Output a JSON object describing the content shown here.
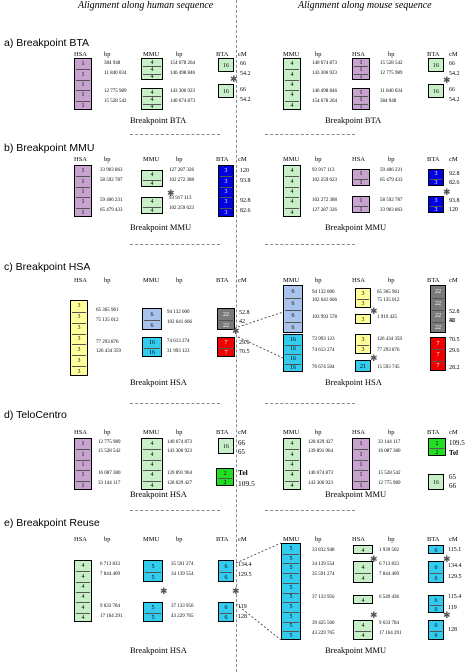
{
  "column_headers": {
    "human": "Alignment along human sequence",
    "mouse": "Alignment along mouse sequence"
  },
  "colors": {
    "lilac": "#c9a3d0",
    "green": "#c8f0c8",
    "blue": "#0000e0",
    "yellow": "#ffff99",
    "grey": "#7a7a7a",
    "lightblue": "#a9c4ec",
    "cyan": "#33ccee",
    "red": "#ee0000",
    "brightgreen": "#22dd22"
  },
  "sections": [
    {
      "title": "a) Breakpoint BTA",
      "left_caption": "Breakpoint BTA",
      "right_caption": "Breakpoint BTA",
      "left_headers": [
        "HSA",
        "bp",
        "MMU",
        "bp",
        "BTA",
        "cM"
      ],
      "right_headers": [
        "MMU",
        "bp",
        "HSA",
        "bp",
        "BTA",
        "cM"
      ],
      "left_values": [
        [
          "384 948",
          "11 840 034",
          "12 775 989",
          "15 528 542"
        ],
        [
          "154 678 264",
          "146 498 846",
          "143 306 923",
          "140 674 873"
        ],
        [
          "66",
          "54.2",
          "66",
          "54.2"
        ]
      ],
      "right_values": [
        [
          "140 674 873",
          "143 306 923",
          "146 498 846",
          "154 678 264"
        ],
        [
          "15 528 542",
          "12 775 989",
          "11 840 034",
          "384 948"
        ],
        [
          "66",
          "54.2",
          "66",
          "54.2"
        ]
      ]
    },
    {
      "title": "b) Breakpoint MMU",
      "left_caption": "Breakpoint MMU",
      "right_caption": "Breakpoint MMU",
      "left_headers": [
        "HSA",
        "bp",
        "MMU",
        "bp",
        "BTA",
        "cM"
      ],
      "right_headers": [
        "MMU",
        "bp",
        "HSA",
        "bp",
        "BTA",
        "cM"
      ],
      "left_values": [
        [
          "33 903 863",
          "58 592 787",
          "59 406 231",
          "65 479 433"
        ],
        [
          "127 287 326",
          "102 272 388",
          "93 917 113",
          "102 259 623"
        ],
        [
          "120",
          "93.8",
          "92.8",
          "82.6"
        ]
      ],
      "right_values": [
        [
          "93 917 113",
          "102 259 623",
          "102 272 388",
          "127 287 326"
        ],
        [
          "59 406 231",
          "65 479 433",
          "58 592 787",
          "33 903 863"
        ],
        [
          "92.8",
          "82.6",
          "93.8",
          "120"
        ]
      ]
    },
    {
      "title": "c) Breakpoint HSA",
      "left_caption": "Breakpoint HSA",
      "right_caption": "Breakpoint HSA",
      "left_headers": [
        "HSA",
        "bp",
        "MMU",
        "bp",
        "BTA",
        "cM"
      ],
      "right_headers": [
        "MMU",
        "bp",
        "HSA",
        "bp",
        "BTA",
        "cM"
      ],
      "left_values": [
        [
          "65 365 961",
          "75 135 012",
          "77 293 876",
          "126 434 359"
        ],
        [
          "94 132 000",
          "102 641 666",
          "74 613 274",
          "31 993 123"
        ],
        [
          "52.8",
          "42",
          "29.6",
          "70.5"
        ]
      ],
      "right_values": [
        [
          "94 132 000",
          "102 641 666",
          "103 993 578",
          "73 993 123",
          "74 613 274",
          "76 674 504"
        ],
        [
          "65 365 961",
          "75 135 012",
          "1 919 425",
          "126 434 359",
          "77 293 876",
          "15 593 745"
        ],
        [
          "52.8",
          "42",
          "38",
          "70.5",
          "29.6",
          "28.2"
        ]
      ]
    },
    {
      "title": "d) TeloCentro",
      "left_caption": "Breakpoint HSA",
      "right_caption": "Breakpoint MMU",
      "left_headers": [
        "HSA",
        "bp",
        "MMU",
        "bp",
        "BTA",
        "cM"
      ],
      "right_headers": [
        "MMU",
        "bp",
        "HSA",
        "bp",
        "BTA",
        "cM"
      ],
      "left_values": [
        [
          "12 775 989",
          "15 528 542",
          "16 087 380",
          "33 144 117"
        ],
        [
          "140 674 873",
          "143 306 923",
          "139 891 964",
          "128 029 427"
        ],
        [
          "66",
          "65",
          "Tel",
          "109.5"
        ]
      ],
      "right_values": [
        [
          "128 029 427",
          "139 891 964",
          "140 674 873",
          "143 306 923"
        ],
        [
          "33 144 117",
          "16 087 380",
          "15 528 542",
          "12 775 989"
        ],
        [
          "109.5",
          "Tel",
          "65",
          "66"
        ]
      ]
    },
    {
      "title": "e) Breakpoint Reuse",
      "left_caption": "Breakpoint HSA",
      "right_caption": "Breakpoint MMU",
      "left_headers": [
        "HSA",
        "bp",
        "MMU",
        "bp",
        "BTA",
        "cM"
      ],
      "right_headers": [
        "MMU",
        "bp",
        "HSA",
        "bp",
        "BTA",
        "cM"
      ],
      "left_values": [
        [
          "6 713 833",
          "7 844 409",
          "9 633 784",
          "17 164 291"
        ],
        [
          "35 591 274",
          "34 139 554",
          "37 133 956",
          "43 229 765"
        ],
        [
          "134.4",
          "129.5",
          "119",
          "128"
        ]
      ],
      "right_values": [
        [
          "33 832 948",
          "34 139 554",
          "35 591 274",
          "37 133 956",
          "39 425 560",
          "43 229 765"
        ],
        [
          "1 939 502",
          "6 713 833",
          "7 844 409",
          "6 549 436",
          "9 633 784",
          "17 164 291"
        ],
        [
          "115.1",
          "134.4",
          "129.5",
          "115.4",
          "119",
          "128"
        ]
      ]
    }
  ]
}
